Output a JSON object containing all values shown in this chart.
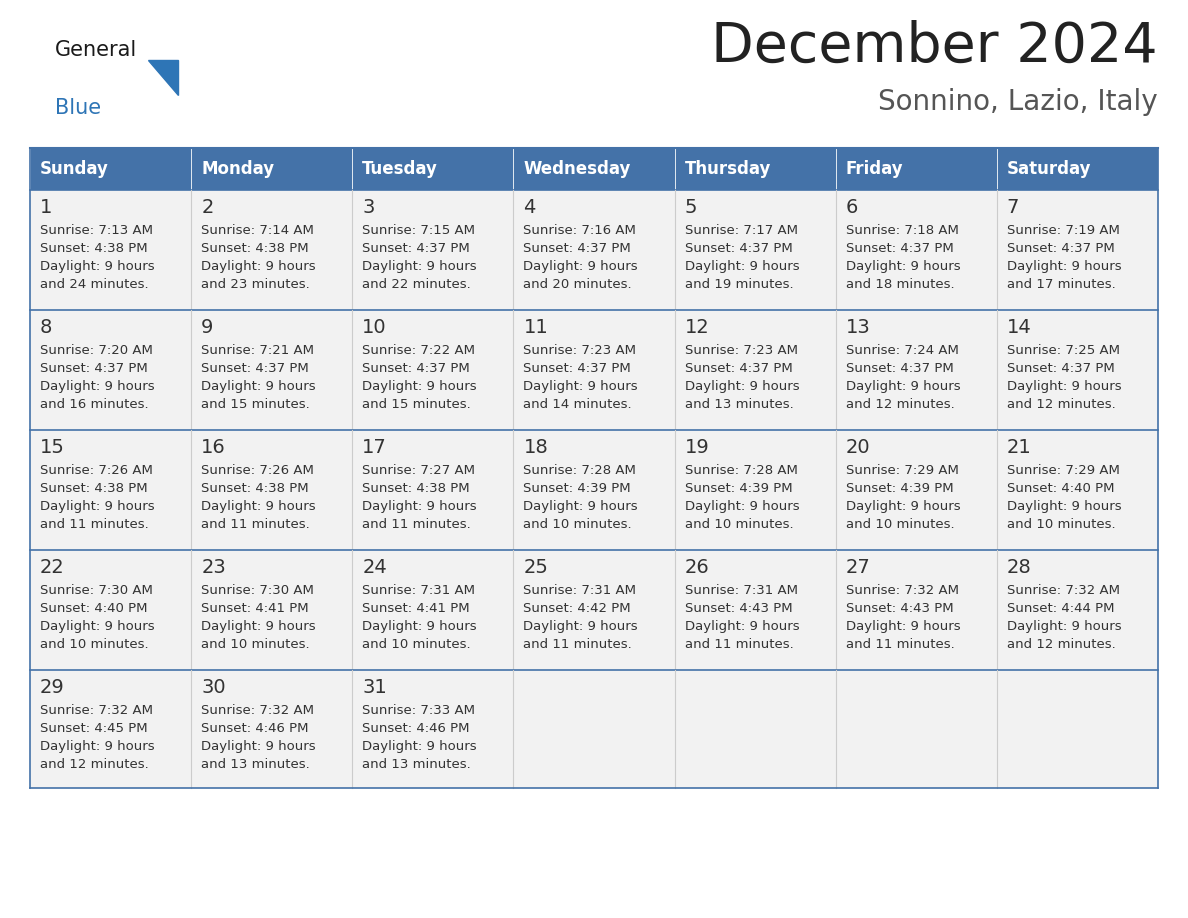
{
  "title": "December 2024",
  "subtitle": "Sonnino, Lazio, Italy",
  "days_of_week": [
    "Sunday",
    "Monday",
    "Tuesday",
    "Wednesday",
    "Thursday",
    "Friday",
    "Saturday"
  ],
  "header_bg": "#4472A8",
  "header_text": "#FFFFFF",
  "cell_bg": "#F2F2F2",
  "border_color": "#4472A8",
  "day_num_color": "#333333",
  "cell_text_color": "#333333",
  "title_color": "#222222",
  "subtitle_color": "#555555",
  "general_color": "#1a1a1a",
  "blue_color": "#2E75B6",
  "calendar_data": [
    [
      {
        "day": 1,
        "sunrise": "7:13 AM",
        "sunset": "4:38 PM",
        "daylight_h": "9 hours",
        "daylight_m": "and 24 minutes."
      },
      {
        "day": 2,
        "sunrise": "7:14 AM",
        "sunset": "4:38 PM",
        "daylight_h": "9 hours",
        "daylight_m": "and 23 minutes."
      },
      {
        "day": 3,
        "sunrise": "7:15 AM",
        "sunset": "4:37 PM",
        "daylight_h": "9 hours",
        "daylight_m": "and 22 minutes."
      },
      {
        "day": 4,
        "sunrise": "7:16 AM",
        "sunset": "4:37 PM",
        "daylight_h": "9 hours",
        "daylight_m": "and 20 minutes."
      },
      {
        "day": 5,
        "sunrise": "7:17 AM",
        "sunset": "4:37 PM",
        "daylight_h": "9 hours",
        "daylight_m": "and 19 minutes."
      },
      {
        "day": 6,
        "sunrise": "7:18 AM",
        "sunset": "4:37 PM",
        "daylight_h": "9 hours",
        "daylight_m": "and 18 minutes."
      },
      {
        "day": 7,
        "sunrise": "7:19 AM",
        "sunset": "4:37 PM",
        "daylight_h": "9 hours",
        "daylight_m": "and 17 minutes."
      }
    ],
    [
      {
        "day": 8,
        "sunrise": "7:20 AM",
        "sunset": "4:37 PM",
        "daylight_h": "9 hours",
        "daylight_m": "and 16 minutes."
      },
      {
        "day": 9,
        "sunrise": "7:21 AM",
        "sunset": "4:37 PM",
        "daylight_h": "9 hours",
        "daylight_m": "and 15 minutes."
      },
      {
        "day": 10,
        "sunrise": "7:22 AM",
        "sunset": "4:37 PM",
        "daylight_h": "9 hours",
        "daylight_m": "and 15 minutes."
      },
      {
        "day": 11,
        "sunrise": "7:23 AM",
        "sunset": "4:37 PM",
        "daylight_h": "9 hours",
        "daylight_m": "and 14 minutes."
      },
      {
        "day": 12,
        "sunrise": "7:23 AM",
        "sunset": "4:37 PM",
        "daylight_h": "9 hours",
        "daylight_m": "and 13 minutes."
      },
      {
        "day": 13,
        "sunrise": "7:24 AM",
        "sunset": "4:37 PM",
        "daylight_h": "9 hours",
        "daylight_m": "and 12 minutes."
      },
      {
        "day": 14,
        "sunrise": "7:25 AM",
        "sunset": "4:37 PM",
        "daylight_h": "9 hours",
        "daylight_m": "and 12 minutes."
      }
    ],
    [
      {
        "day": 15,
        "sunrise": "7:26 AM",
        "sunset": "4:38 PM",
        "daylight_h": "9 hours",
        "daylight_m": "and 11 minutes."
      },
      {
        "day": 16,
        "sunrise": "7:26 AM",
        "sunset": "4:38 PM",
        "daylight_h": "9 hours",
        "daylight_m": "and 11 minutes."
      },
      {
        "day": 17,
        "sunrise": "7:27 AM",
        "sunset": "4:38 PM",
        "daylight_h": "9 hours",
        "daylight_m": "and 11 minutes."
      },
      {
        "day": 18,
        "sunrise": "7:28 AM",
        "sunset": "4:39 PM",
        "daylight_h": "9 hours",
        "daylight_m": "and 10 minutes."
      },
      {
        "day": 19,
        "sunrise": "7:28 AM",
        "sunset": "4:39 PM",
        "daylight_h": "9 hours",
        "daylight_m": "and 10 minutes."
      },
      {
        "day": 20,
        "sunrise": "7:29 AM",
        "sunset": "4:39 PM",
        "daylight_h": "9 hours",
        "daylight_m": "and 10 minutes."
      },
      {
        "day": 21,
        "sunrise": "7:29 AM",
        "sunset": "4:40 PM",
        "daylight_h": "9 hours",
        "daylight_m": "and 10 minutes."
      }
    ],
    [
      {
        "day": 22,
        "sunrise": "7:30 AM",
        "sunset": "4:40 PM",
        "daylight_h": "9 hours",
        "daylight_m": "and 10 minutes."
      },
      {
        "day": 23,
        "sunrise": "7:30 AM",
        "sunset": "4:41 PM",
        "daylight_h": "9 hours",
        "daylight_m": "and 10 minutes."
      },
      {
        "day": 24,
        "sunrise": "7:31 AM",
        "sunset": "4:41 PM",
        "daylight_h": "9 hours",
        "daylight_m": "and 10 minutes."
      },
      {
        "day": 25,
        "sunrise": "7:31 AM",
        "sunset": "4:42 PM",
        "daylight_h": "9 hours",
        "daylight_m": "and 11 minutes."
      },
      {
        "day": 26,
        "sunrise": "7:31 AM",
        "sunset": "4:43 PM",
        "daylight_h": "9 hours",
        "daylight_m": "and 11 minutes."
      },
      {
        "day": 27,
        "sunrise": "7:32 AM",
        "sunset": "4:43 PM",
        "daylight_h": "9 hours",
        "daylight_m": "and 11 minutes."
      },
      {
        "day": 28,
        "sunrise": "7:32 AM",
        "sunset": "4:44 PM",
        "daylight_h": "9 hours",
        "daylight_m": "and 12 minutes."
      }
    ],
    [
      {
        "day": 29,
        "sunrise": "7:32 AM",
        "sunset": "4:45 PM",
        "daylight_h": "9 hours",
        "daylight_m": "and 12 minutes."
      },
      {
        "day": 30,
        "sunrise": "7:32 AM",
        "sunset": "4:46 PM",
        "daylight_h": "9 hours",
        "daylight_m": "and 13 minutes."
      },
      {
        "day": 31,
        "sunrise": "7:33 AM",
        "sunset": "4:46 PM",
        "daylight_h": "9 hours",
        "daylight_m": "and 13 minutes."
      },
      null,
      null,
      null,
      null
    ]
  ],
  "fig_width": 11.88,
  "fig_height": 9.18,
  "dpi": 100
}
